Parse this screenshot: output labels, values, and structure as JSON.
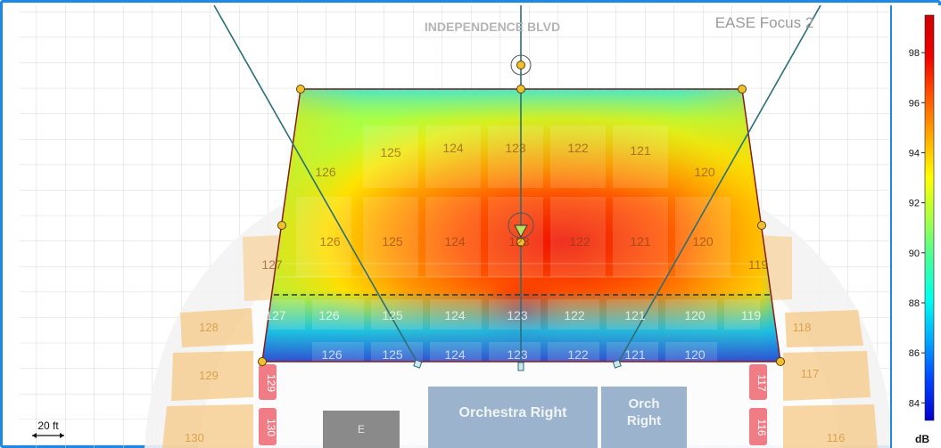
{
  "app": {
    "title": "EASE Focus 2"
  },
  "map": {
    "street_label": "INDEPENDENCE BLVD",
    "scale_label": "20 ft",
    "sections": {
      "orchestra_right": "Orchestra Right",
      "orch_right_line1": "Orch",
      "orch_right_line2": "Right"
    },
    "row_labels_upper": [
      "126",
      "125",
      "124",
      "123",
      "122",
      "121",
      "120"
    ],
    "row_labels_mid": [
      "127",
      "126",
      "125",
      "124",
      "123",
      "122",
      "121",
      "120",
      "119"
    ],
    "row_labels_lower": [
      "127",
      "126",
      "125",
      "124",
      "123",
      "122",
      "121",
      "120",
      "119"
    ],
    "row_labels_front": [
      "126",
      "125",
      "124",
      "123",
      "122",
      "121",
      "120"
    ],
    "side_left": [
      "128",
      "129",
      "130"
    ],
    "side_right": [
      "118",
      "117",
      "116"
    ],
    "vertical_left": [
      "129",
      "130"
    ],
    "vertical_right": [
      "117",
      "116"
    ],
    "small_block": "E",
    "colors": {
      "background_grid": "#d9d9d9",
      "seat_tint": "#f6c987",
      "seat_red": "#f07d86",
      "section_blue": "#9bb3cc",
      "dark_block": "#8a8a8a",
      "frame": "#1e88e5",
      "boundary": "#8b1a1a",
      "handle": "#f0c030",
      "ray": "#2a6f7a"
    }
  },
  "colorbar": {
    "unit": "dB",
    "ticks": [
      "98",
      "96",
      "94",
      "92",
      "90",
      "88",
      "86",
      "84"
    ],
    "min": 83.3,
    "max": 99.5,
    "gradient": [
      "#0000cc",
      "#0044ff",
      "#00aaff",
      "#00ffee",
      "#44ff99",
      "#aaff44",
      "#ffff00",
      "#ffaa00",
      "#ff5500",
      "#ee0000",
      "#cc0000"
    ]
  }
}
